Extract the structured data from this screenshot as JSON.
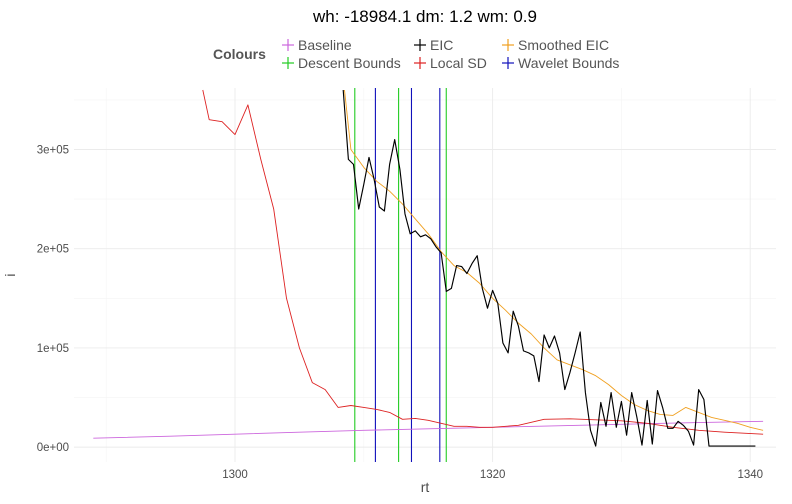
{
  "chart_data": {
    "type": "line",
    "title": "wh: -18984.1 dm: 1.2 wm: 0.9",
    "xlabel": "rt",
    "ylabel": "i",
    "xlim": [
      1287.5,
      1342
    ],
    "ylim": [
      -15000,
      362000
    ],
    "x_ticks": [
      1300,
      1320,
      1340
    ],
    "x_tick_labels": [
      "1300",
      "1320",
      "1340"
    ],
    "y_ticks": [
      0,
      100000,
      200000,
      300000
    ],
    "y_tick_labels": [
      "0e+00",
      "1e+05",
      "2e+05",
      "3e+05"
    ],
    "grid": true,
    "legend": {
      "title": "Colours",
      "position": "top",
      "entries": [
        {
          "label": "Baseline",
          "color": "#cc66dd"
        },
        {
          "label": "Descent Bounds",
          "color": "#22cc22"
        },
        {
          "label": "EIC",
          "color": "#000000"
        },
        {
          "label": "Local SD",
          "color": "#dd2222"
        },
        {
          "label": "Smoothed EIC",
          "color": "#f0a020"
        },
        {
          "label": "Wavelet Bounds",
          "color": "#1111bb"
        }
      ]
    },
    "series": [
      {
        "name": "Baseline",
        "color": "#cc66dd",
        "x": [
          1289,
          1295,
          1300,
          1305,
          1310,
          1315,
          1320,
          1325,
          1330,
          1335,
          1341
        ],
        "y": [
          9000,
          11000,
          13000,
          15000,
          17000,
          18500,
          20000,
          21500,
          23000,
          24500,
          26000
        ]
      },
      {
        "name": "Local SD",
        "color": "#dd2222",
        "x": [
          1297.5,
          1298,
          1299,
          1300,
          1301,
          1302,
          1303,
          1304,
          1305,
          1306,
          1307,
          1308,
          1309,
          1310,
          1311,
          1312,
          1313,
          1314,
          1315,
          1316,
          1317,
          1318,
          1319,
          1320,
          1322,
          1324,
          1326,
          1328,
          1330,
          1332,
          1334,
          1336,
          1338,
          1341
        ],
        "y": [
          360000,
          330000,
          328000,
          315000,
          345000,
          290000,
          240000,
          150000,
          100000,
          65000,
          58000,
          40000,
          42000,
          40000,
          38000,
          35000,
          28000,
          29000,
          27000,
          24000,
          21000,
          21000,
          20000,
          20000,
          22000,
          28000,
          28500,
          27500,
          26500,
          24000,
          20000,
          17000,
          15000,
          13000
        ]
      },
      {
        "name": "Smoothed EIC",
        "color": "#f0a020",
        "x": [
          1308.5,
          1309,
          1310,
          1311,
          1312,
          1313,
          1314,
          1315,
          1316,
          1317,
          1318,
          1319,
          1320,
          1321,
          1322,
          1323,
          1324,
          1325,
          1326,
          1327,
          1328,
          1329,
          1330,
          1331,
          1332,
          1333,
          1334,
          1335,
          1336,
          1337,
          1338,
          1339,
          1340,
          1341
        ],
        "y": [
          360000,
          300000,
          282000,
          268000,
          258000,
          245000,
          230000,
          215000,
          197000,
          183000,
          176000,
          165000,
          150000,
          138000,
          125000,
          114000,
          100000,
          88000,
          83000,
          78000,
          72000,
          63000,
          52000,
          43000,
          37000,
          33000,
          32000,
          40000,
          35000,
          30000,
          27000,
          24000,
          20000,
          17000
        ]
      },
      {
        "name": "EIC",
        "color": "#000000",
        "x": [
          1308.4,
          1308.8,
          1309.2,
          1309.6,
          1310.0,
          1310.4,
          1310.8,
          1311.2,
          1311.6,
          1312.0,
          1312.4,
          1312.8,
          1313.2,
          1313.6,
          1314.0,
          1314.4,
          1314.8,
          1315.2,
          1315.6,
          1316.0,
          1316.4,
          1316.8,
          1317.2,
          1317.6,
          1318.0,
          1318.4,
          1318.8,
          1319.2,
          1319.6,
          1320.0,
          1320.4,
          1320.8,
          1321.2,
          1321.6,
          1322.0,
          1322.4,
          1322.8,
          1323.2,
          1323.6,
          1324.0,
          1324.4,
          1324.8,
          1325.2,
          1325.6,
          1326.0,
          1326.4,
          1326.8,
          1327.2,
          1327.6,
          1328.0,
          1328.4,
          1328.8,
          1329.2,
          1329.6,
          1330.0,
          1330.4,
          1330.8,
          1331.2,
          1331.6,
          1332.0,
          1332.4,
          1332.8,
          1333.2,
          1333.6,
          1334.0,
          1334.4,
          1334.8,
          1335.2,
          1335.6,
          1336.0,
          1336.4,
          1336.8,
          1337.2,
          1337.6,
          1338.0,
          1338.4,
          1338.8,
          1339.2,
          1339.6,
          1340.0,
          1340.4
        ],
        "y": [
          360000,
          290000,
          285000,
          240000,
          265000,
          292000,
          270000,
          242000,
          238000,
          285000,
          310000,
          280000,
          235000,
          215000,
          218000,
          212000,
          214000,
          210000,
          202000,
          196000,
          157000,
          160000,
          183000,
          182000,
          175000,
          185000,
          193000,
          160000,
          140000,
          158000,
          145000,
          105000,
          95000,
          137000,
          122000,
          97000,
          95000,
          92000,
          66000,
          113000,
          100000,
          112000,
          95000,
          58000,
          75000,
          95000,
          116000,
          55000,
          17000,
          1000,
          45000,
          21000,
          55000,
          20000,
          46000,
          12000,
          55000,
          30000,
          2000,
          47000,
          3000,
          57000,
          40000,
          19000,
          19000,
          26000,
          22000,
          16000,
          2000,
          58000,
          48000,
          1000,
          1000,
          1000,
          1000,
          1000,
          1000,
          1000,
          1000,
          1000,
          1000
        ]
      }
    ],
    "vlines": [
      {
        "series": "Descent Bounds",
        "x": 1309.3,
        "color": "#22cc22"
      },
      {
        "series": "Descent Bounds",
        "x": 1312.7,
        "color": "#22cc22"
      },
      {
        "series": "Descent Bounds",
        "x": 1316.4,
        "color": "#22cc22"
      },
      {
        "series": "Wavelet Bounds",
        "x": 1310.9,
        "color": "#1111bb"
      },
      {
        "series": "Wavelet Bounds",
        "x": 1313.7,
        "color": "#1111bb"
      },
      {
        "series": "Wavelet Bounds",
        "x": 1315.9,
        "color": "#1111bb"
      }
    ]
  }
}
